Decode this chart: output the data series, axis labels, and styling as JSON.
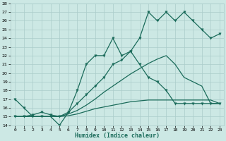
{
  "xlabel": "Humidex (Indice chaleur)",
  "bg_color": "#cce8e4",
  "line_color": "#1a6b5a",
  "grid_color": "#aaccca",
  "xlim": [
    -0.5,
    23.5
  ],
  "ylim": [
    14,
    28
  ],
  "xticks": [
    0,
    1,
    2,
    3,
    4,
    5,
    6,
    7,
    8,
    9,
    10,
    11,
    12,
    13,
    14,
    15,
    16,
    17,
    18,
    19,
    20,
    21,
    22,
    23
  ],
  "yticks": [
    14,
    15,
    16,
    17,
    18,
    19,
    20,
    21,
    22,
    23,
    24,
    25,
    26,
    27,
    28
  ],
  "s1_x": [
    0,
    1,
    2,
    3,
    4,
    5,
    6,
    7,
    8,
    9,
    10,
    11,
    12,
    13,
    14,
    15,
    16,
    17,
    18,
    19,
    20,
    21,
    22,
    23
  ],
  "s1_y": [
    17,
    16,
    15,
    15,
    15,
    14,
    15.5,
    18,
    21,
    22,
    22,
    24,
    22,
    22.5,
    24,
    27,
    26,
    27,
    26,
    27,
    26,
    25,
    24,
    24.5
  ],
  "s2_x": [
    0,
    1,
    2,
    3,
    4,
    5,
    6,
    7,
    8,
    9,
    10,
    11,
    12,
    13,
    14,
    15,
    16,
    17,
    18,
    19,
    20,
    21,
    22,
    23
  ],
  "s2_y": [
    15,
    15,
    15.2,
    15.5,
    15.2,
    15.0,
    15.5,
    16.5,
    17.5,
    18.5,
    19.5,
    21,
    21.5,
    22.5,
    21,
    19.5,
    19,
    18,
    16.5,
    16.5,
    16.5,
    16.5,
    16.5,
    16.5
  ],
  "s3_x": [
    0,
    1,
    2,
    3,
    4,
    5,
    6,
    7,
    8,
    9,
    10,
    11,
    12,
    13,
    14,
    15,
    16,
    17,
    18,
    19,
    20,
    21,
    22,
    23
  ],
  "s3_y": [
    15,
    15,
    15,
    15,
    15,
    15,
    15.3,
    15.7,
    16.3,
    17.0,
    17.8,
    18.5,
    19.2,
    19.9,
    20.5,
    21.1,
    21.6,
    22.0,
    21.0,
    19.5,
    19.0,
    18.5,
    16.5,
    16.5
  ],
  "s4_x": [
    0,
    1,
    2,
    3,
    4,
    5,
    6,
    7,
    8,
    9,
    10,
    11,
    12,
    13,
    14,
    15,
    16,
    17,
    18,
    19,
    20,
    21,
    22,
    23
  ],
  "s4_y": [
    15,
    15,
    15,
    15,
    15,
    15,
    15.1,
    15.3,
    15.6,
    15.9,
    16.1,
    16.3,
    16.5,
    16.7,
    16.8,
    16.9,
    16.9,
    16.9,
    16.9,
    16.9,
    16.9,
    16.9,
    16.9,
    16.5
  ]
}
